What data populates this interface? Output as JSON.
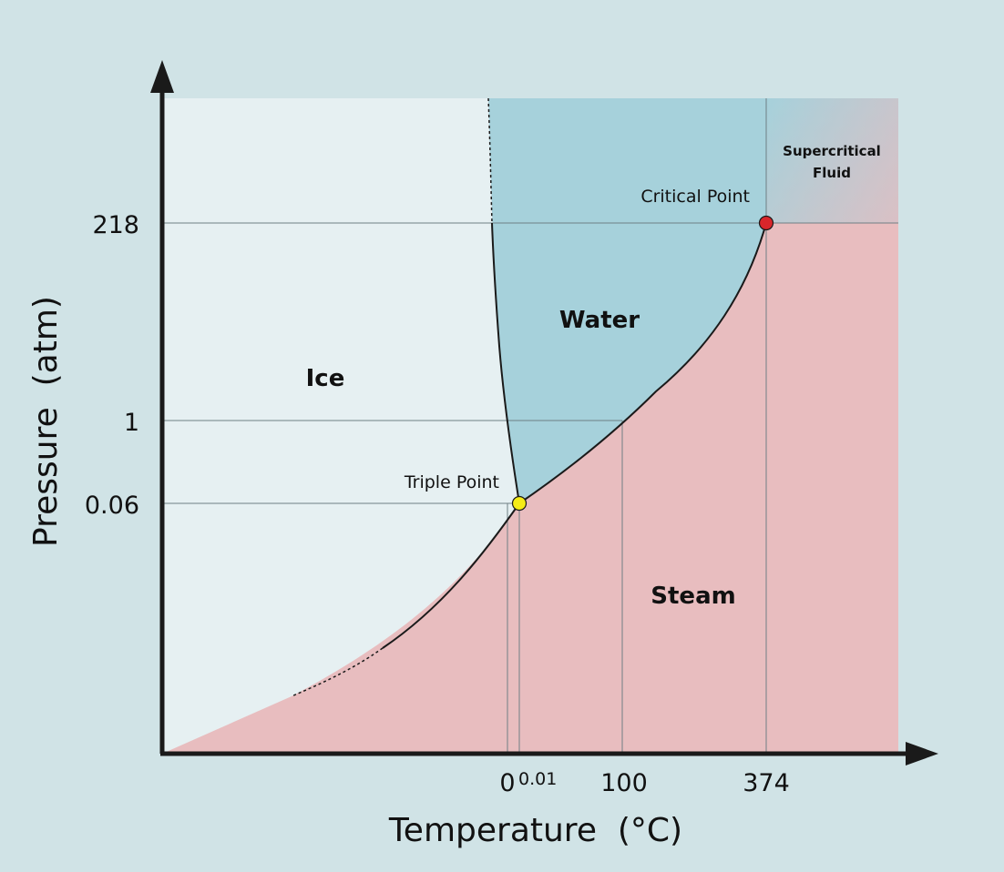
{
  "colors": {
    "background": "#d0e3e6",
    "ice": "#e6f0f2",
    "water": "#a6d1db",
    "steam": "#e8bdbf",
    "supercritical_from": "#a6d1db",
    "supercritical_to": "#e8bdbf",
    "boundary": "#1a1a1a",
    "gridline": "#6f7f84",
    "triple_point": "#f5ec16",
    "critical_point": "#d9262b"
  },
  "axes": {
    "x_title": "Temperature  (°C)",
    "y_title": "Pressure  (atm)",
    "x_ticks": [
      "0",
      "0.01",
      "100",
      "374"
    ],
    "y_ticks": [
      "218",
      "1",
      "0.06"
    ]
  },
  "regions": {
    "ice": "Ice",
    "water": "Water",
    "steam": "Steam",
    "supercritical_line1": "Supercritical",
    "supercritical_line2": "Fluid"
  },
  "points": {
    "triple": {
      "label": "Triple Point",
      "temperature": "0.01",
      "pressure": "0.06"
    },
    "critical": {
      "label": "Critical Point",
      "temperature": "374",
      "pressure": "218"
    }
  }
}
